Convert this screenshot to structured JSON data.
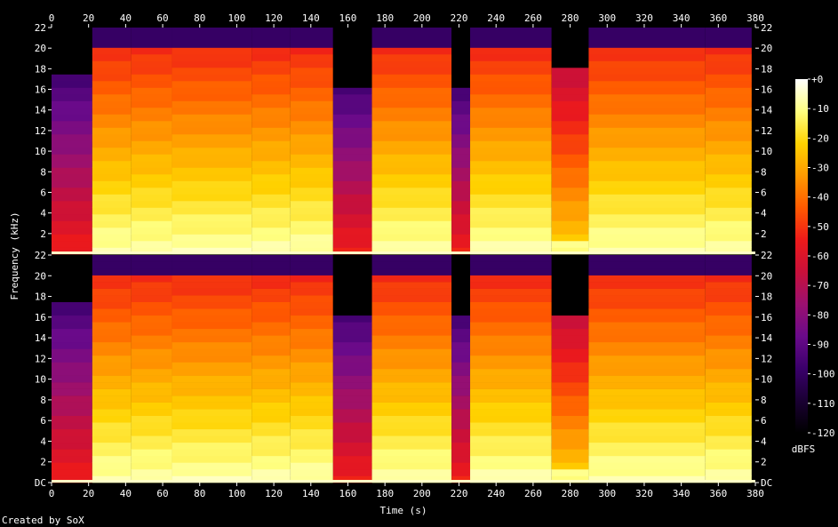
{
  "credit": "Created by SoX",
  "chart_data": {
    "type": "heatmap",
    "title": "",
    "xlabel": "Time (s)",
    "ylabel": "Frequency (kHz)",
    "xlim": [
      0,
      380
    ],
    "ylim": [
      0,
      22
    ],
    "x_ticks": [
      "0",
      "20",
      "40",
      "60",
      "80",
      "100",
      "120",
      "140",
      "160",
      "180",
      "200",
      "220",
      "240",
      "260",
      "280",
      "300",
      "320",
      "340",
      "360",
      "380"
    ],
    "y_ticks": [
      "DC",
      "2",
      "4",
      "6",
      "8",
      "10",
      "12",
      "14",
      "16",
      "18",
      "20",
      "22"
    ],
    "colorbar": {
      "label": "dBFS",
      "range": [
        -120,
        0
      ],
      "ticks": [
        "+0",
        "-10",
        "-20",
        "-30",
        "-40",
        "-50",
        "-60",
        "-70",
        "-80",
        "-90",
        "-100",
        "-110",
        "-120"
      ]
    },
    "channels": [
      {
        "name": "upper",
        "segments": [
          {
            "start": 0,
            "end": 22,
            "cutoff_khz": 17,
            "level": "low"
          },
          {
            "start": 22,
            "end": 43,
            "cutoff_khz": 20,
            "level": "high"
          },
          {
            "start": 43,
            "end": 65,
            "cutoff_khz": 20,
            "level": "high"
          },
          {
            "start": 65,
            "end": 108,
            "cutoff_khz": 20,
            "level": "high"
          },
          {
            "start": 108,
            "end": 129,
            "cutoff_khz": 20,
            "level": "high"
          },
          {
            "start": 129,
            "end": 152,
            "cutoff_khz": 20,
            "level": "high"
          },
          {
            "start": 152,
            "end": 173,
            "cutoff_khz": 16,
            "level": "low"
          },
          {
            "start": 173,
            "end": 216,
            "cutoff_khz": 20,
            "level": "high"
          },
          {
            "start": 216,
            "end": 226,
            "cutoff_khz": 16,
            "level": "low"
          },
          {
            "start": 226,
            "end": 270,
            "cutoff_khz": 20,
            "level": "high"
          },
          {
            "start": 270,
            "end": 290,
            "cutoff_khz": 18,
            "level": "mid"
          },
          {
            "start": 290,
            "end": 353,
            "cutoff_khz": 20,
            "level": "high"
          },
          {
            "start": 353,
            "end": 378,
            "cutoff_khz": 20,
            "level": "high"
          }
        ]
      },
      {
        "name": "lower",
        "segments": [
          {
            "start": 0,
            "end": 22,
            "cutoff_khz": 17,
            "level": "low"
          },
          {
            "start": 22,
            "end": 43,
            "cutoff_khz": 20,
            "level": "high"
          },
          {
            "start": 43,
            "end": 65,
            "cutoff_khz": 20,
            "level": "high"
          },
          {
            "start": 65,
            "end": 108,
            "cutoff_khz": 20,
            "level": "high"
          },
          {
            "start": 108,
            "end": 129,
            "cutoff_khz": 20,
            "level": "high"
          },
          {
            "start": 129,
            "end": 152,
            "cutoff_khz": 20,
            "level": "high"
          },
          {
            "start": 152,
            "end": 173,
            "cutoff_khz": 16,
            "level": "low"
          },
          {
            "start": 173,
            "end": 216,
            "cutoff_khz": 20,
            "level": "high"
          },
          {
            "start": 216,
            "end": 226,
            "cutoff_khz": 16,
            "level": "low"
          },
          {
            "start": 226,
            "end": 270,
            "cutoff_khz": 20,
            "level": "high"
          },
          {
            "start": 270,
            "end": 290,
            "cutoff_khz": 16,
            "level": "mid"
          },
          {
            "start": 290,
            "end": 353,
            "cutoff_khz": 20,
            "level": "high"
          },
          {
            "start": 353,
            "end": 378,
            "cutoff_khz": 20,
            "level": "high"
          }
        ]
      }
    ],
    "colors": {
      "background": "#000000",
      "text": "#ffffff",
      "palette": [
        "#000000",
        "#1a0033",
        "#3a006b",
        "#6a0a8a",
        "#9a1070",
        "#c8103a",
        "#ee1a1a",
        "#ff5a00",
        "#ff9a00",
        "#ffd200",
        "#ffff80",
        "#ffffff"
      ]
    }
  }
}
